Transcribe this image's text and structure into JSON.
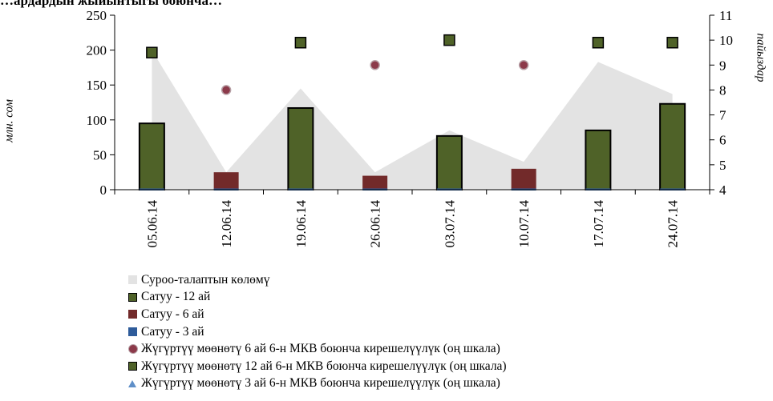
{
  "title_partial": "…ардардын жыйынтыгы боюнча…",
  "chart_data": {
    "type": "bar",
    "categories": [
      "05.06.14",
      "12.06.14",
      "19.06.14",
      "26.06.14",
      "03.07.14",
      "10.07.14",
      "17.07.14",
      "24.07.14"
    ],
    "ylabel_left": "млн. сом",
    "ylabel_right": "пайыздар",
    "ylim_left": [
      0,
      250
    ],
    "ylim_right": [
      4,
      11
    ],
    "yticks_left": [
      "0",
      "50",
      "100",
      "150",
      "200",
      "250"
    ],
    "yticks_right": [
      "4",
      "5",
      "6",
      "7",
      "8",
      "9",
      "10",
      "11"
    ],
    "grid": false,
    "legend_position": "bottom",
    "series": [
      {
        "name": "Суроо-талаптын көлөмү",
        "kind": "area",
        "axis": "left",
        "color": "#e3e3e3",
        "values": [
          200,
          25,
          145,
          25,
          85,
          40,
          183,
          137
        ]
      },
      {
        "name": "Сатуу - 12 ай",
        "kind": "bar",
        "axis": "left",
        "color": "#4f6228",
        "values": [
          95,
          0,
          117,
          0,
          77,
          0,
          85,
          123
        ]
      },
      {
        "name": "Сатуу - 6 ай",
        "kind": "bar",
        "axis": "left",
        "color": "#722a2a",
        "values": [
          0,
          25,
          0,
          20,
          0,
          30,
          0,
          0
        ]
      },
      {
        "name": "Сатуу - 3 ай",
        "kind": "bar",
        "axis": "left",
        "color": "#2e5b9a",
        "values": [
          0,
          0,
          0,
          0,
          0,
          0,
          0,
          0
        ]
      },
      {
        "name": "Жүгүртүү мөөнөтү 6 ай 6-н МКВ боюнча кирешелүүлүк (оң шкала)",
        "kind": "marker-circle",
        "axis": "right",
        "color": "#8c3a4a",
        "values": [
          null,
          8.0,
          null,
          9.0,
          null,
          9.0,
          null,
          null
        ]
      },
      {
        "name": "Жүгүртүү мөөнөтү 12 ай 6-н МКВ боюнча кирешелүүлүк (оң шкала)",
        "kind": "marker-square",
        "axis": "right",
        "color": "#4f6228",
        "values": [
          9.5,
          null,
          9.9,
          null,
          10.0,
          null,
          9.9,
          9.9
        ]
      },
      {
        "name": "Жүгүртүү мөөнөтү 3 ай 6-н МКВ боюнча кирешелүүлүк (оң шкала)",
        "kind": "marker-triangle",
        "axis": "right",
        "color": "#5f8fc8",
        "values": [
          null,
          null,
          null,
          null,
          null,
          null,
          null,
          null
        ]
      }
    ]
  }
}
